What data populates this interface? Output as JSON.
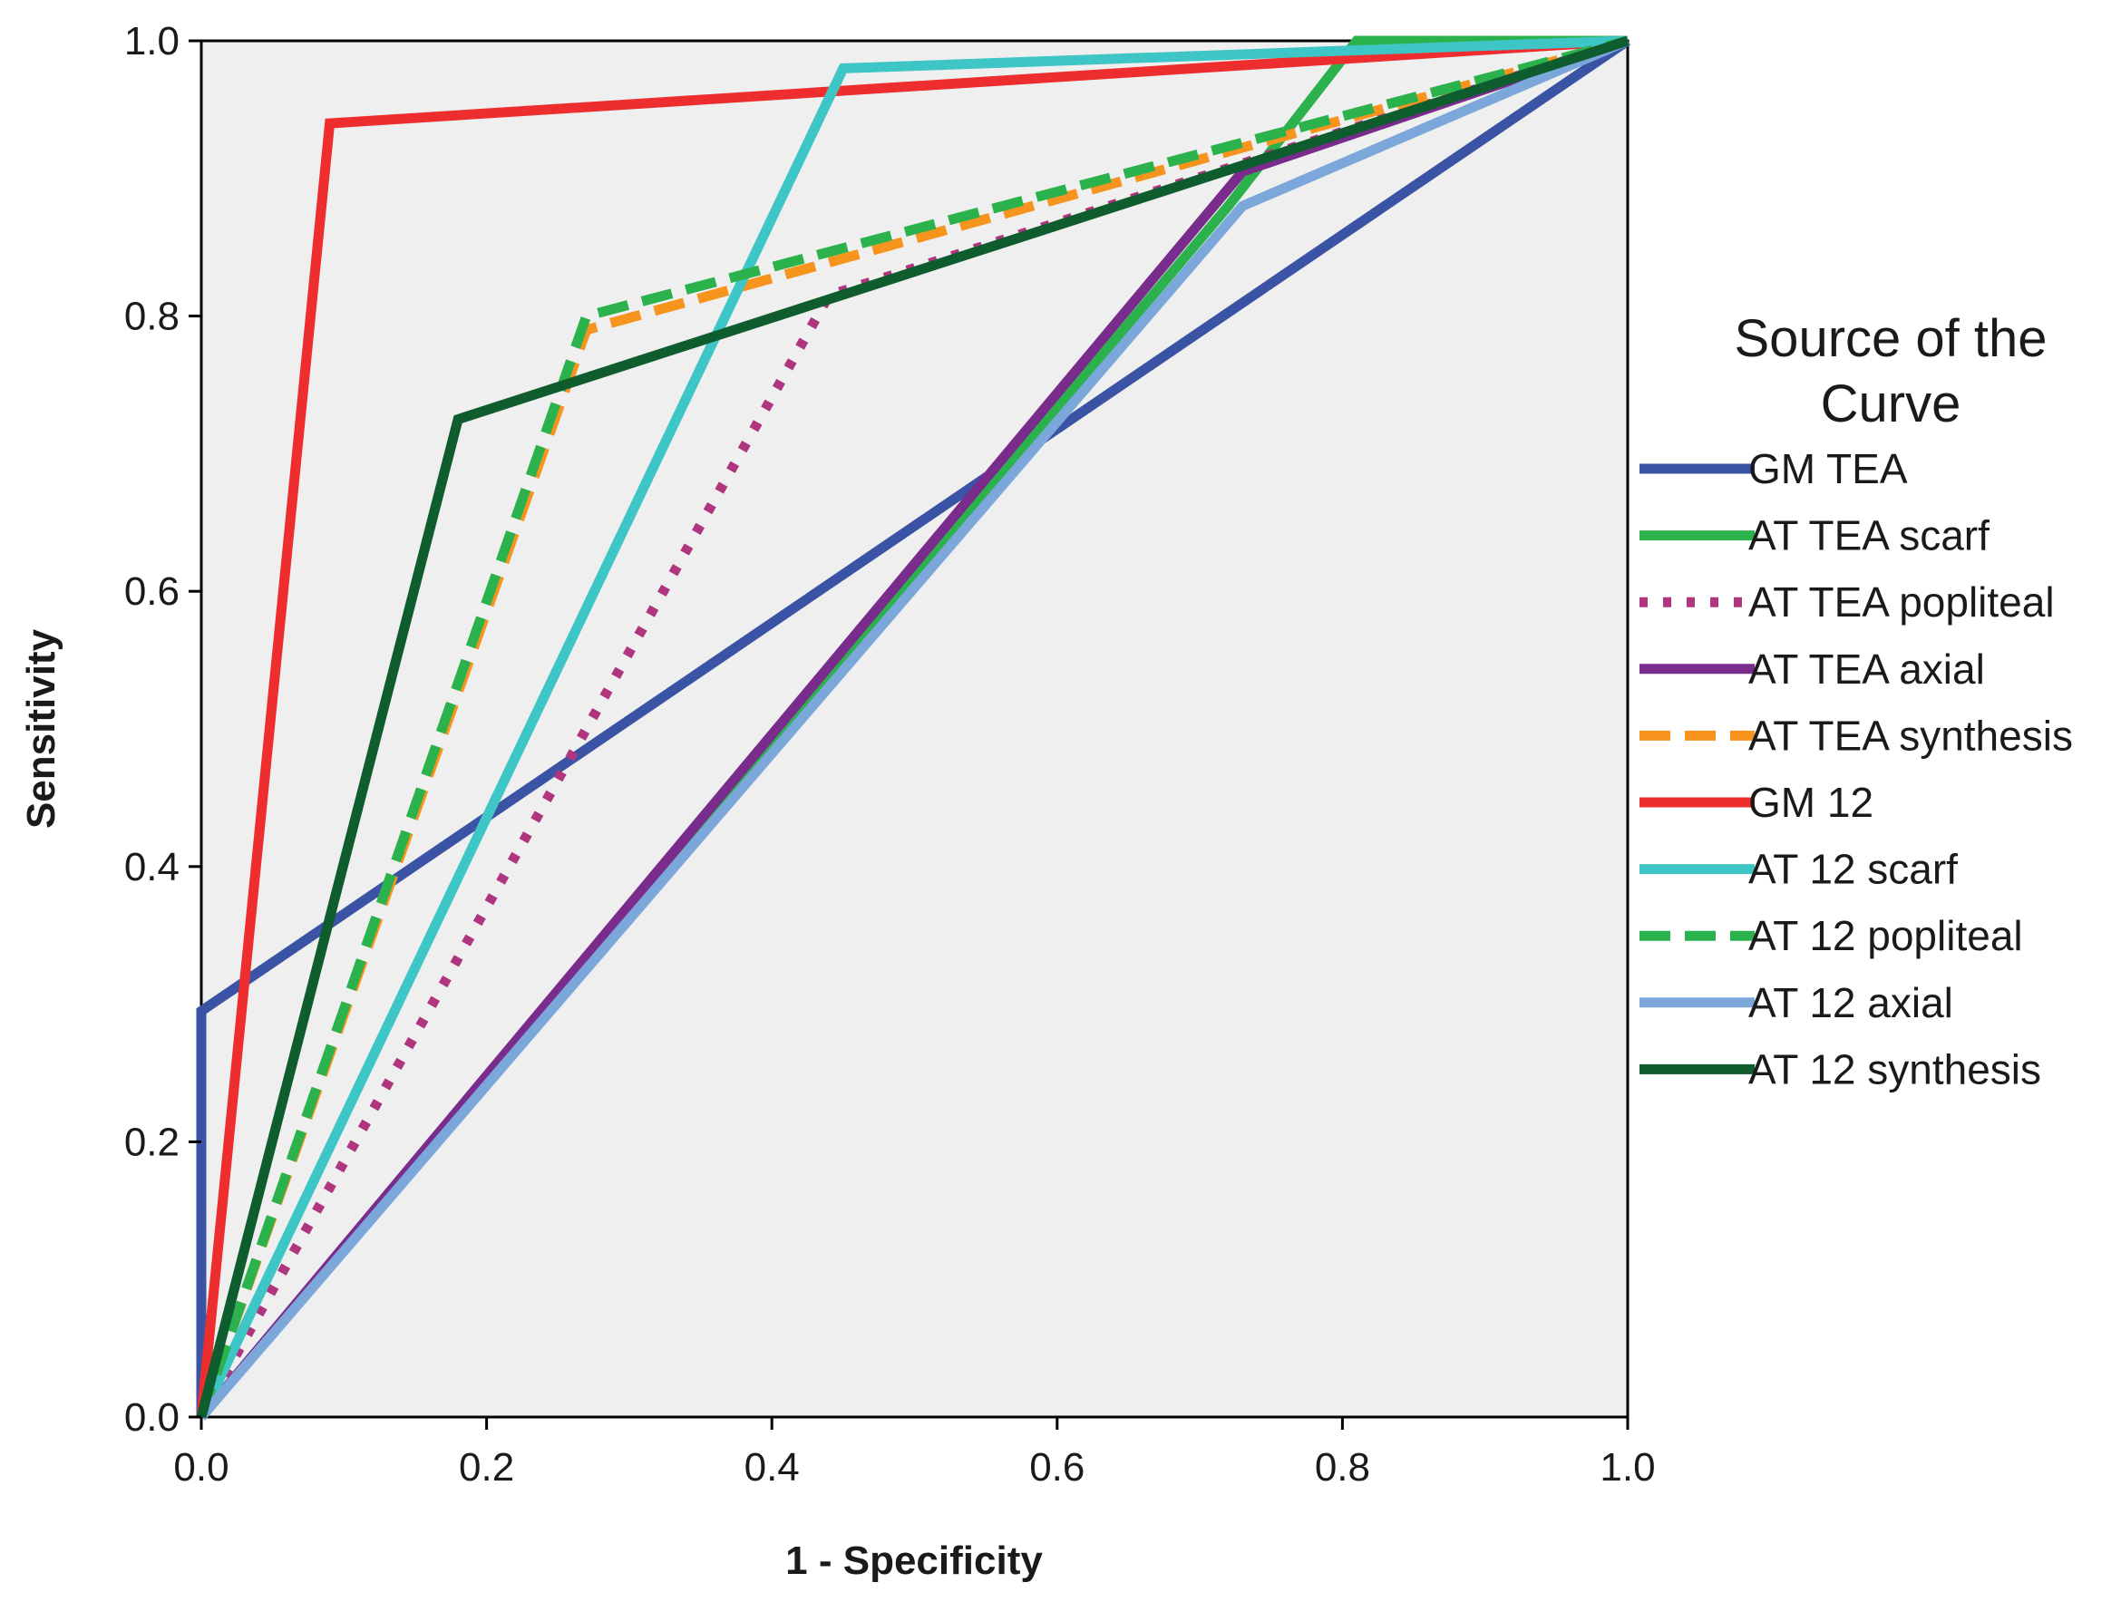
{
  "chart_data": {
    "type": "line",
    "title": "",
    "xlabel": "1 - Specificity",
    "ylabel": "Sensitivity",
    "xlim": [
      0,
      1
    ],
    "ylim": [
      0,
      1
    ],
    "xticks": [
      "0.0",
      "0.2",
      "0.4",
      "0.6",
      "0.8",
      "1.0"
    ],
    "yticks": [
      "0.0",
      "0.2",
      "0.4",
      "0.6",
      "0.8",
      "1.0"
    ],
    "grid": false,
    "legend_title": "Source of the Curve",
    "legend_title_lines": [
      "Source of the",
      "Curve"
    ],
    "legend_position": "right",
    "series": [
      {
        "name": "GM TEA",
        "color": "#3a53a4",
        "dash": "solid",
        "x": [
          0,
          0,
          1
        ],
        "y": [
          0,
          0.295,
          1
        ]
      },
      {
        "name": "AT TEA scarf",
        "color": "#2bb24c",
        "dash": "solid",
        "x": [
          0,
          0.72,
          0.81,
          1
        ],
        "y": [
          0,
          0.88,
          1.0,
          1
        ]
      },
      {
        "name": "AT TEA popliteal",
        "color": "#b0357f",
        "dash": "dotted",
        "x": [
          0,
          0.44,
          1
        ],
        "y": [
          0,
          0.815,
          1
        ]
      },
      {
        "name": "AT TEA axial",
        "color": "#7a2c8c",
        "dash": "solid",
        "x": [
          0,
          0.73,
          1
        ],
        "y": [
          0,
          0.905,
          1
        ]
      },
      {
        "name": "AT TEA synthesis",
        "color": "#f7941d",
        "dash": "dashed",
        "x": [
          0,
          0.27,
          1
        ],
        "y": [
          0,
          0.79,
          1
        ]
      },
      {
        "name": "GM 12",
        "color": "#ee2e2e",
        "dash": "solid",
        "x": [
          0,
          0.09,
          1
        ],
        "y": [
          0,
          0.94,
          1
        ]
      },
      {
        "name": "AT 12 scarf",
        "color": "#3ec5c5",
        "dash": "solid",
        "x": [
          0,
          0.45,
          1
        ],
        "y": [
          0,
          0.98,
          1
        ]
      },
      {
        "name": "AT 12 popliteal",
        "color": "#2bb24c",
        "dash": "dashed",
        "x": [
          0,
          0.27,
          1
        ],
        "y": [
          0,
          0.8,
          1
        ]
      },
      {
        "name": "AT 12 axial",
        "color": "#7ba7da",
        "dash": "solid",
        "x": [
          0,
          0.73,
          1
        ],
        "y": [
          0,
          0.88,
          1
        ]
      },
      {
        "name": "AT 12 synthesis",
        "color": "#0f5c2e",
        "dash": "solid",
        "x": [
          0,
          0.18,
          1
        ],
        "y": [
          0,
          0.725,
          1
        ]
      }
    ]
  }
}
